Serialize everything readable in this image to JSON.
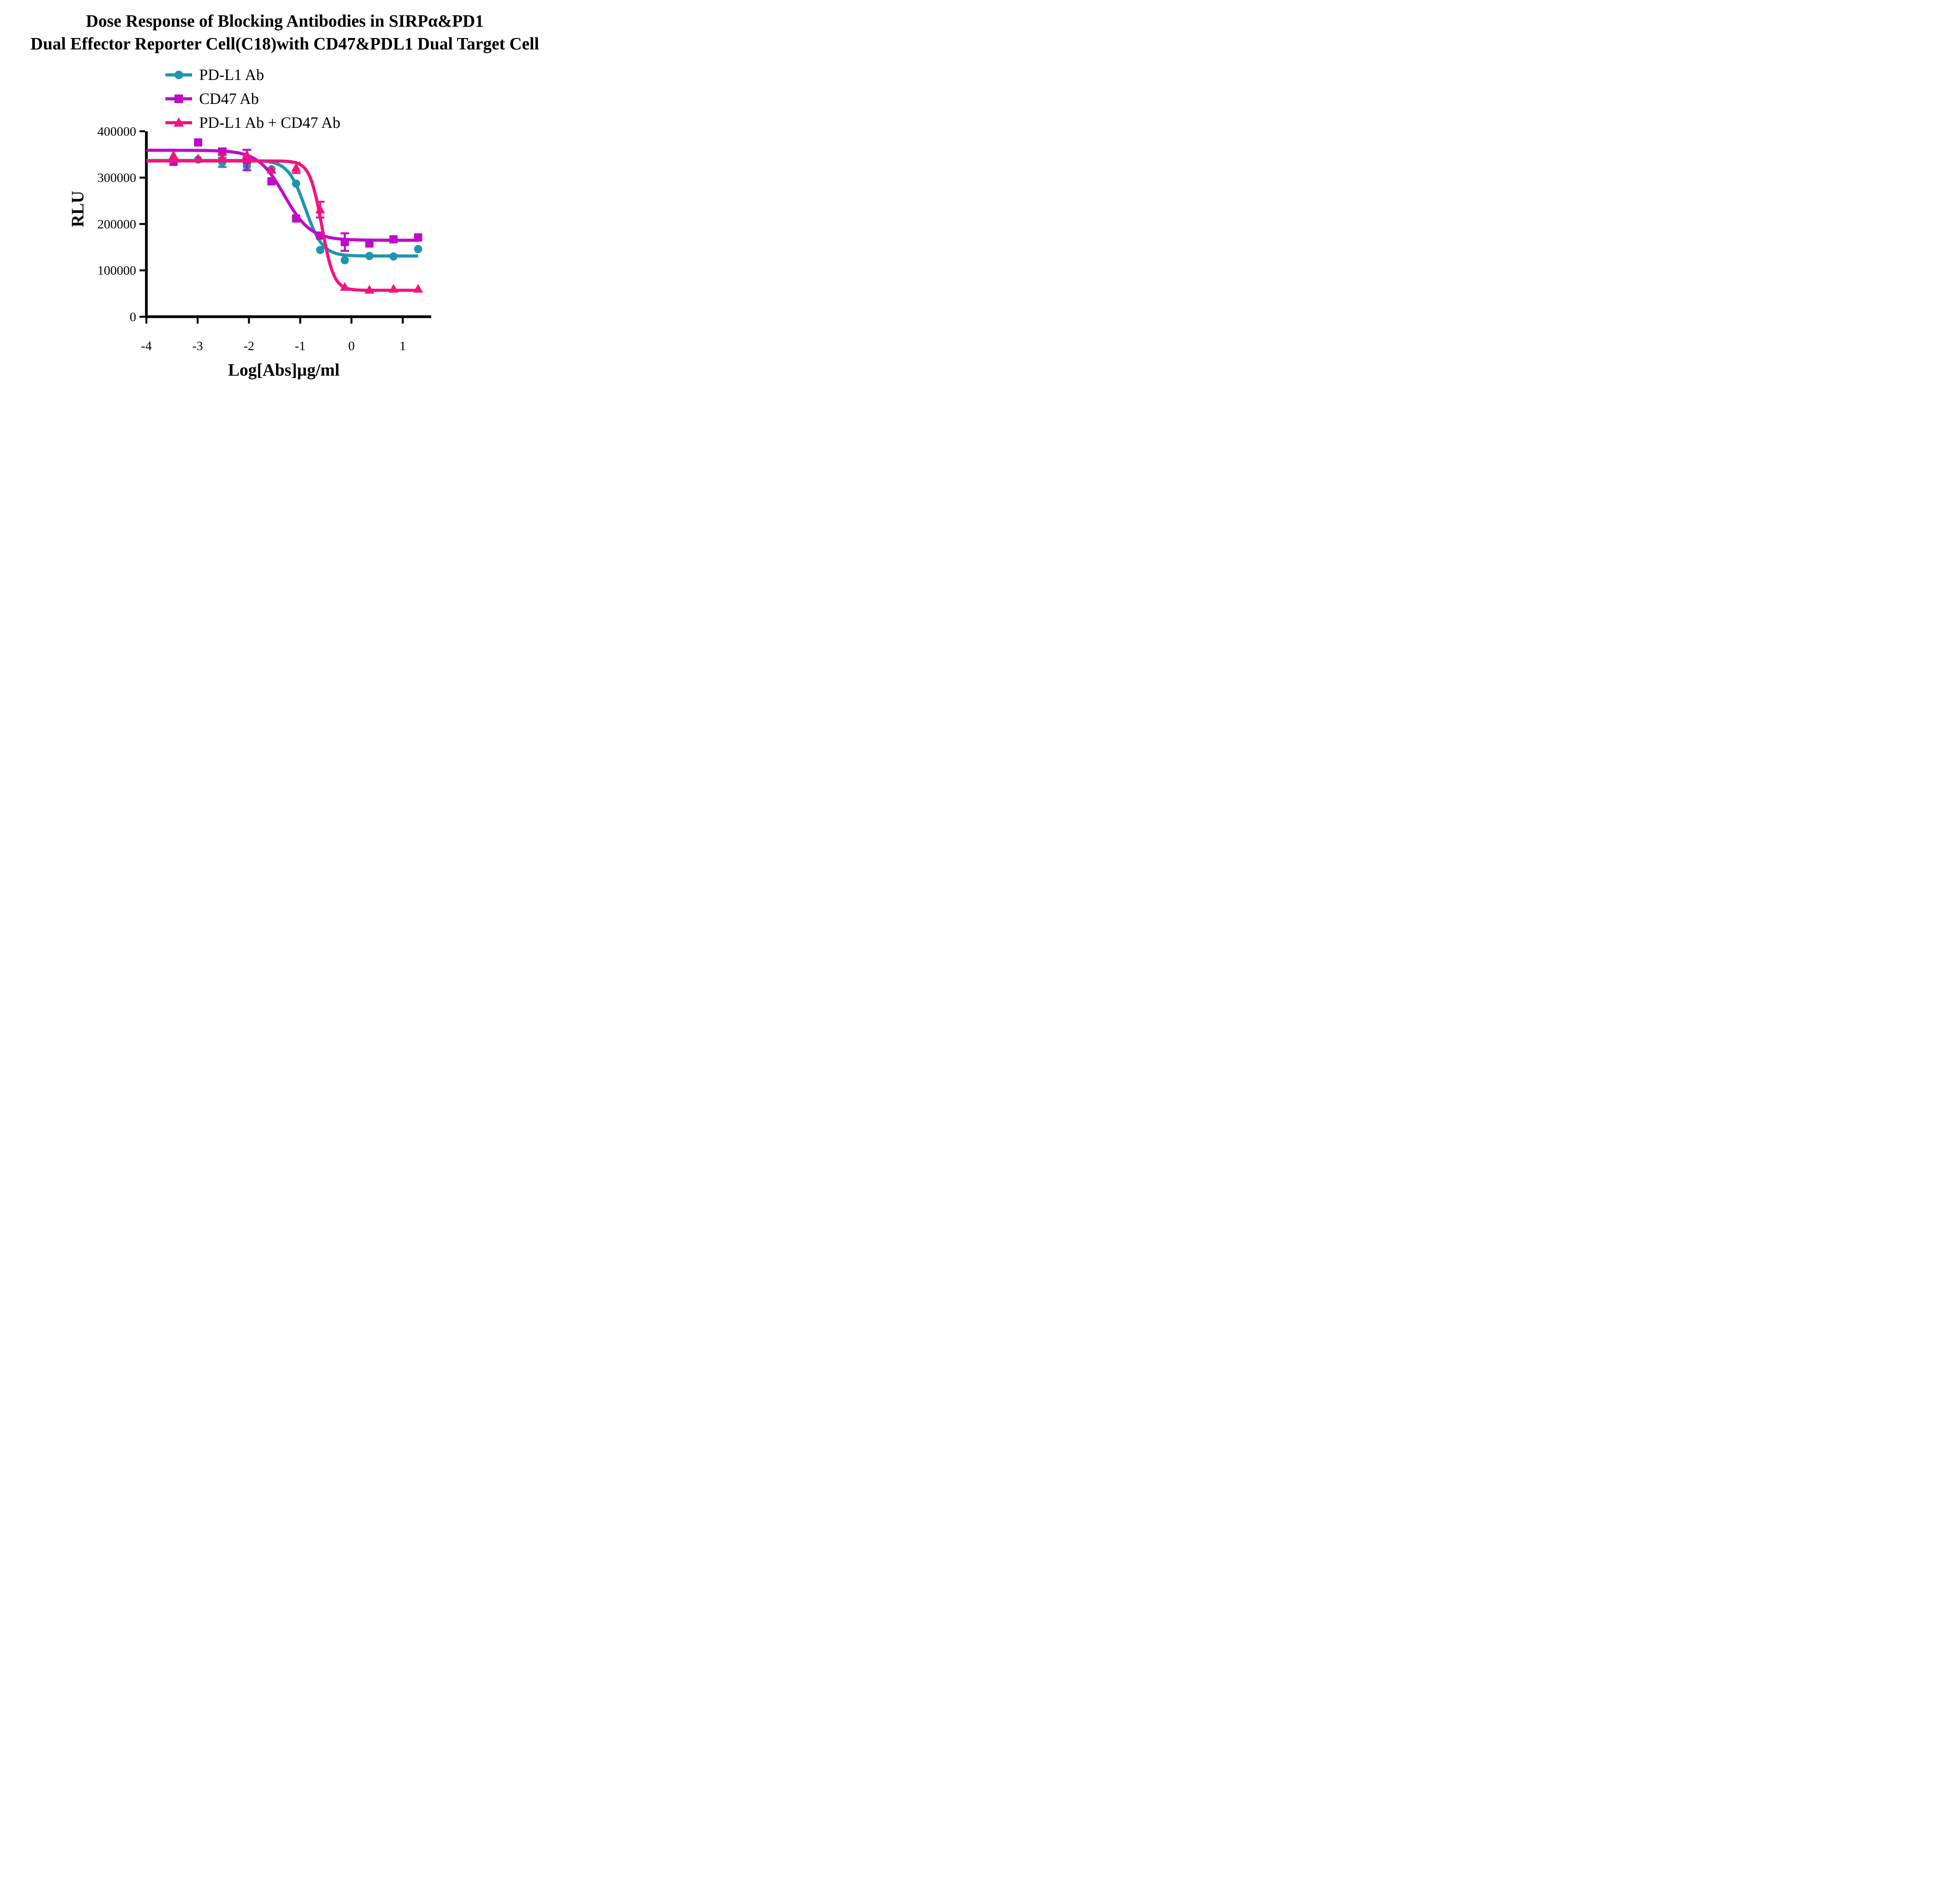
{
  "title": {
    "line1": "Dose Response of Blocking Antibodies in SIRPα&PD1",
    "line2": "Dual Effector Reporter Cell(C18)with CD47&PDL1 Dual Target Cell"
  },
  "legend": {
    "items": [
      {
        "label": "PD-L1 Ab",
        "marker": "circle",
        "color": "#1E96AE"
      },
      {
        "label": "CD47 Ab",
        "marker": "square",
        "color": "#BE0DC8"
      },
      {
        "label": "PD-L1 Ab + CD47 Ab",
        "marker": "triangle",
        "color": "#F4137E"
      }
    ]
  },
  "axes": {
    "x": {
      "label": "Log[Abs]µg/ml",
      "tick_labels": [
        "-4",
        "-3",
        "-2",
        "-1",
        "0",
        "1"
      ],
      "tick_values": [
        -4,
        -3,
        -2,
        -1,
        0,
        1
      ],
      "range": [
        -4,
        1.56
      ]
    },
    "y": {
      "label": "RLU",
      "tick_labels": [
        "0",
        "100000",
        "200000",
        "300000",
        "400000"
      ],
      "tick_values": [
        0,
        100000,
        200000,
        300000,
        400000
      ],
      "range": [
        0,
        400000
      ]
    }
  },
  "chart_data": {
    "type": "scatter",
    "title": "Dose Response of Blocking Antibodies in SIRPα&PD1 Dual Effector Reporter Cell(C18)with CD47&PDL1 Dual Target Cell",
    "xlabel": "Log[Abs]µg/ml",
    "ylabel": "RLU",
    "xlim": [
      -4,
      1.56
    ],
    "ylim": [
      0,
      400000
    ],
    "grid": false,
    "legend_position": "upper-center",
    "x": [
      -3.47,
      -2.99,
      -2.52,
      -2.04,
      -1.56,
      -1.08,
      -0.61,
      -0.13,
      0.35,
      0.82,
      1.3
    ],
    "series": [
      {
        "name": "PD-L1 Ab",
        "marker": "circle",
        "color": "#1E96AE",
        "values": [
          336000,
          339000,
          333000,
          325000,
          318000,
          287000,
          144000,
          122000,
          131000,
          130000,
          146000
        ],
        "errors": [
          null,
          null,
          10000,
          null,
          null,
          null,
          null,
          null,
          null,
          null,
          null
        ],
        "fit_4pl": {
          "top": 337000,
          "bottom": 131000,
          "logIC50": -0.9,
          "hillslope": 2.6
        }
      },
      {
        "name": "CD47 Ab",
        "marker": "square",
        "color": "#BE0DC8",
        "values": [
          334000,
          376000,
          356000,
          338000,
          292000,
          212000,
          175000,
          161000,
          158000,
          167000,
          171000
        ],
        "errors": [
          null,
          null,
          7000,
          22000,
          null,
          null,
          null,
          19000,
          null,
          null,
          null
        ],
        "fit_4pl": {
          "top": 359000,
          "bottom": 165000,
          "logIC50": -1.31,
          "hillslope": 1.7
        }
      },
      {
        "name": "PD-L1 Ab + CD47 Ab",
        "marker": "triangle",
        "color": "#F4137E",
        "values": [
          348000,
          341000,
          343000,
          349000,
          317000,
          321000,
          231000,
          64000,
          58000,
          60000,
          60000
        ],
        "errors": [
          null,
          null,
          6000,
          null,
          null,
          11000,
          17000,
          null,
          null,
          null,
          null
        ],
        "fit_4pl": {
          "top": 336000,
          "bottom": 57000,
          "logIC50": -0.58,
          "hillslope": 3.7
        }
      }
    ]
  }
}
